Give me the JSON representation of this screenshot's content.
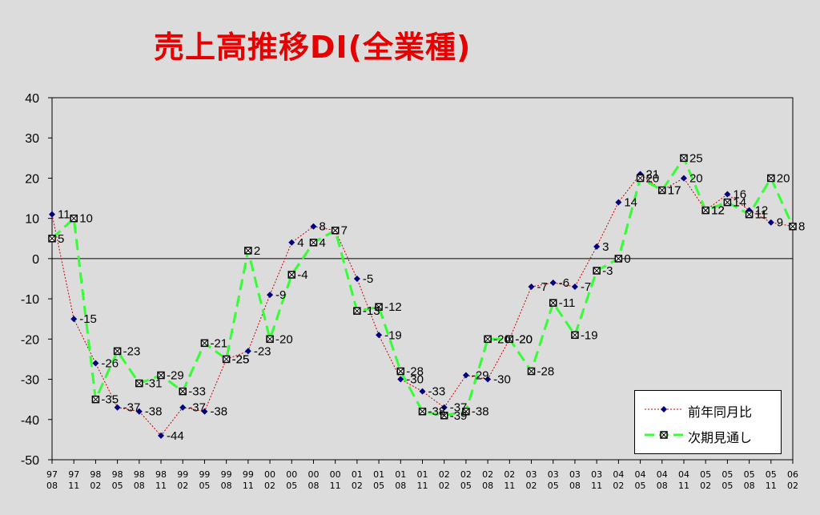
{
  "title": "売上高推移DI(全業種)",
  "legend": {
    "series1": "前年同月比",
    "series2": "次期見通し"
  },
  "colors": {
    "series1": "#cc0000",
    "series1_marker": "#000080",
    "series2": "#33ff33",
    "title": "#e60000",
    "background": "#dcdcdc"
  },
  "chart_data": {
    "type": "line",
    "title": "売上高推移DI(全業種)",
    "xlabel": "",
    "ylabel": "",
    "ylim": [
      -50,
      40
    ],
    "yticks": [
      40,
      30,
      20,
      10,
      0,
      -10,
      -20,
      -30,
      -40,
      -50
    ],
    "grid": false,
    "legend_position": "bottom-right",
    "categories": [
      [
        "97",
        "08"
      ],
      [
        "97",
        "11"
      ],
      [
        "98",
        "02"
      ],
      [
        "98",
        "05"
      ],
      [
        "98",
        "08"
      ],
      [
        "98",
        "11"
      ],
      [
        "99",
        "02"
      ],
      [
        "99",
        "05"
      ],
      [
        "99",
        "08"
      ],
      [
        "99",
        "11"
      ],
      [
        "00",
        "02"
      ],
      [
        "00",
        "05"
      ],
      [
        "00",
        "08"
      ],
      [
        "00",
        "11"
      ],
      [
        "01",
        "02"
      ],
      [
        "01",
        "05"
      ],
      [
        "01",
        "08"
      ],
      [
        "01",
        "11"
      ],
      [
        "02",
        "02"
      ],
      [
        "02",
        "05"
      ],
      [
        "02",
        "08"
      ],
      [
        "02",
        "11"
      ],
      [
        "03",
        "02"
      ],
      [
        "03",
        "05"
      ],
      [
        "03",
        "08"
      ],
      [
        "03",
        "11"
      ],
      [
        "04",
        "02"
      ],
      [
        "04",
        "05"
      ],
      [
        "04",
        "08"
      ],
      [
        "04",
        "11"
      ],
      [
        "05",
        "02"
      ],
      [
        "05",
        "05"
      ],
      [
        "05",
        "08"
      ],
      [
        "05",
        "11"
      ],
      [
        "06",
        "02"
      ]
    ],
    "series": [
      {
        "name": "前年同月比",
        "values": [
          11,
          -15,
          -26,
          -37,
          -38,
          -44,
          -37,
          -38,
          -25,
          -23,
          -9,
          4,
          8,
          7,
          -5,
          -19,
          -30,
          -33,
          -37,
          -29,
          -30,
          -20,
          -7,
          -6,
          -7,
          3,
          14,
          21,
          17,
          20,
          12,
          16,
          12,
          9,
          8
        ],
        "labels": [
          "11",
          "-15",
          "-26",
          "-37",
          "-38",
          "-44",
          "-37",
          "-38",
          "-25",
          "-23",
          "-9",
          "4",
          "8",
          "7",
          "-5",
          "-19",
          "-30",
          "-33",
          "-37",
          "-29",
          "-30",
          "-20",
          "-7",
          "-6",
          "-7",
          "3",
          "14",
          "21",
          "17",
          "20",
          "12",
          "16",
          "12",
          "9",
          "8"
        ]
      },
      {
        "name": "次期見通し",
        "values": [
          5,
          10,
          -35,
          -23,
          -31,
          -29,
          -33,
          -21,
          -25,
          2,
          -20,
          -4,
          4,
          7,
          -13,
          -12,
          -28,
          -38,
          -39,
          -38,
          -20,
          -20,
          -28,
          -11,
          -19,
          -3,
          0,
          20,
          17,
          25,
          12,
          14,
          11,
          20,
          8
        ],
        "labels": [
          "5",
          "10",
          "-35",
          "-23",
          "-31",
          "-29",
          "-33",
          "-21",
          "-25",
          "2",
          "-20",
          "-4",
          "4",
          "",
          "-13",
          "-12",
          "-28",
          "-38",
          "-39",
          "-38",
          "-20",
          "-20",
          "-28",
          "-11",
          "-19",
          "-3",
          "0",
          "20",
          "17",
          "25",
          "12",
          "14",
          "11",
          "20",
          ""
        ]
      }
    ]
  }
}
